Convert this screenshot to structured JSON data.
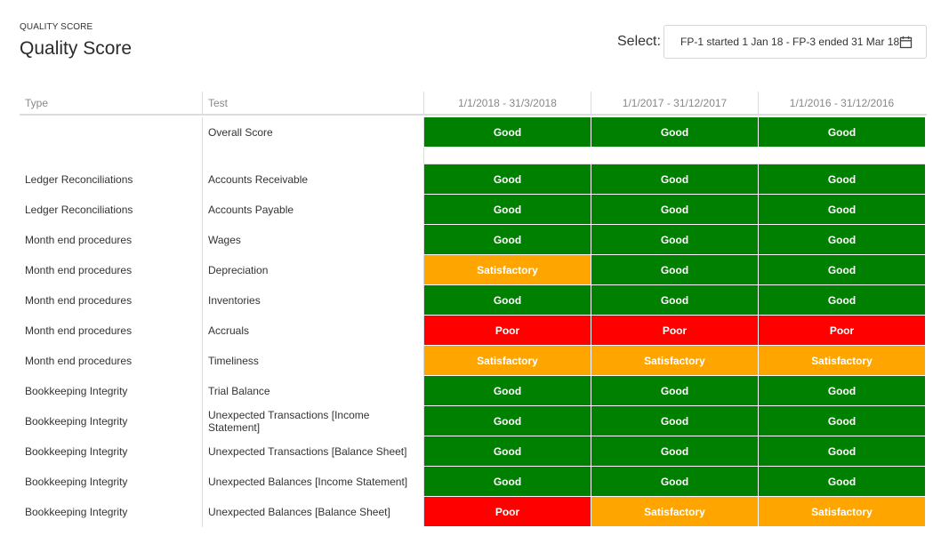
{
  "header": {
    "breadcrumb": "QUALITY SCORE",
    "title": "Quality Score"
  },
  "selector": {
    "label": "Select:",
    "value": "FP-1 started 1 Jan 18 - FP-3 ended 31 Mar 18",
    "icon": "calendar-icon"
  },
  "table": {
    "columns": {
      "type": "Type",
      "test": "Test",
      "periods": [
        "1/1/2018 - 31/3/2018",
        "1/1/2017 - 31/12/2017",
        "1/1/2016 - 31/12/2016"
      ]
    },
    "overall": {
      "type": "",
      "test": "Overall Score",
      "scores": [
        "Good",
        "Good",
        "Good"
      ]
    },
    "rows": [
      {
        "type": "Ledger Reconciliations",
        "test": "Accounts Receivable",
        "scores": [
          "Good",
          "Good",
          "Good"
        ]
      },
      {
        "type": "Ledger Reconciliations",
        "test": "Accounts Payable",
        "scores": [
          "Good",
          "Good",
          "Good"
        ]
      },
      {
        "type": "Month end procedures",
        "test": "Wages",
        "scores": [
          "Good",
          "Good",
          "Good"
        ]
      },
      {
        "type": "Month end procedures",
        "test": "Depreciation",
        "scores": [
          "Satisfactory",
          "Good",
          "Good"
        ]
      },
      {
        "type": "Month end procedures",
        "test": "Inventories",
        "scores": [
          "Good",
          "Good",
          "Good"
        ]
      },
      {
        "type": "Month end procedures",
        "test": "Accruals",
        "scores": [
          "Poor",
          "Poor",
          "Poor"
        ]
      },
      {
        "type": "Month end procedures",
        "test": "Timeliness",
        "scores": [
          "Satisfactory",
          "Satisfactory",
          "Satisfactory"
        ]
      },
      {
        "type": "Bookkeeping Integrity",
        "test": "Trial Balance",
        "scores": [
          "Good",
          "Good",
          "Good"
        ]
      },
      {
        "type": "Bookkeeping Integrity",
        "test": "Unexpected Transactions [Income Statement]",
        "scores": [
          "Good",
          "Good",
          "Good"
        ]
      },
      {
        "type": "Bookkeeping Integrity",
        "test": "Unexpected Transactions [Balance Sheet]",
        "scores": [
          "Good",
          "Good",
          "Good"
        ]
      },
      {
        "type": "Bookkeeping Integrity",
        "test": "Unexpected Balances [Income Statement]",
        "scores": [
          "Good",
          "Good",
          "Good"
        ]
      },
      {
        "type": "Bookkeeping Integrity",
        "test": "Unexpected Balances [Balance Sheet]",
        "scores": [
          "Poor",
          "Satisfactory",
          "Satisfactory"
        ]
      }
    ]
  },
  "colors": {
    "Good": "#008000",
    "Satisfactory": "#ffa500",
    "Poor": "#ff0000"
  }
}
